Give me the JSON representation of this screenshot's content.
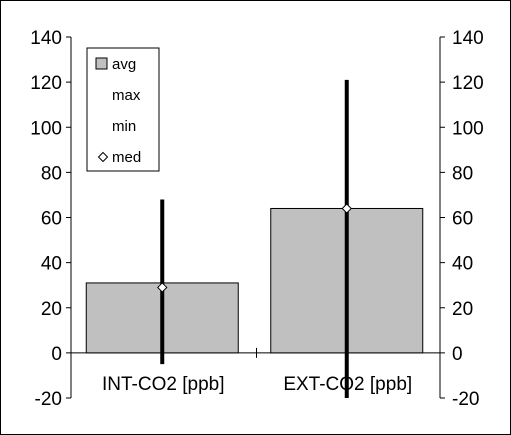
{
  "chart_data": {
    "type": "bar",
    "categories": [
      "INT-CO2 [ppb]",
      "EXT-CO2 [ppb]"
    ],
    "series": [
      {
        "name": "avg",
        "values": [
          31,
          64
        ]
      },
      {
        "name": "max",
        "values": [
          68,
          121
        ]
      },
      {
        "name": "min",
        "values": [
          -5,
          -20
        ]
      },
      {
        "name": "med",
        "values": [
          29,
          64
        ]
      }
    ],
    "ylim": [
      -20,
      140
    ],
    "yticks": [
      "-20",
      "0",
      "20",
      "40",
      "60",
      "80",
      "100",
      "120",
      "140"
    ],
    "legend_labels": [
      "avg",
      "max",
      "min",
      "med"
    ],
    "legend_position": "top-left",
    "grid": false,
    "secondary_axis": true,
    "colors": {
      "bar_fill": "#c0c0c0",
      "bar_stroke": "#000000",
      "range_line": "#000000",
      "marker_fill": "#ffffff",
      "axis": "#000000"
    }
  }
}
